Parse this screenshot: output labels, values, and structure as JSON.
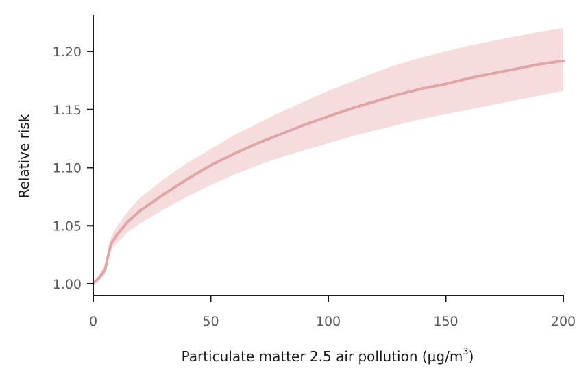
{
  "chart_data": {
    "type": "line",
    "title": "",
    "xlabel": "Particulate matter 2.5 air pollution (µg/",
    "xlabel_unit": "m",
    "xlabel_unit_exponent": "3",
    "xlabel_close": ")",
    "ylabel": "Relative risk",
    "xlim": [
      0,
      200
    ],
    "ylim": [
      0.99,
      1.23
    ],
    "x_ticks": [
      0,
      50,
      100,
      150,
      200
    ],
    "x_tick_labels": [
      "0",
      "50",
      "100",
      "150",
      "200"
    ],
    "y_ticks": [
      1.0,
      1.05,
      1.1,
      1.15,
      1.2
    ],
    "y_tick_labels": [
      "1.00",
      "1.05",
      "1.10",
      "1.15",
      "1.20"
    ],
    "grid": false,
    "line_color": "#e0a5a6",
    "band_color": "#f5dcdd",
    "series": [
      {
        "x": [
          0,
          2.5,
          5,
          7.5,
          10,
          15,
          20,
          30,
          40,
          50,
          60,
          70,
          80,
          90,
          100,
          110,
          120,
          130,
          140,
          150,
          160,
          170,
          180,
          190,
          200
        ],
        "y": [
          1.0,
          1.005,
          1.012,
          1.034,
          1.042,
          1.054,
          1.063,
          1.077,
          1.09,
          1.102,
          1.112,
          1.121,
          1.129,
          1.137,
          1.144,
          1.151,
          1.157,
          1.163,
          1.168,
          1.172,
          1.177,
          1.181,
          1.185,
          1.189,
          1.192
        ],
        "lower": [
          1.0,
          1.003,
          1.008,
          1.029,
          1.035,
          1.045,
          1.052,
          1.064,
          1.075,
          1.085,
          1.094,
          1.102,
          1.109,
          1.115,
          1.121,
          1.127,
          1.132,
          1.137,
          1.142,
          1.146,
          1.15,
          1.154,
          1.158,
          1.162,
          1.166
        ],
        "upper": [
          1.002,
          1.008,
          1.016,
          1.04,
          1.049,
          1.063,
          1.074,
          1.09,
          1.104,
          1.116,
          1.128,
          1.138,
          1.148,
          1.157,
          1.166,
          1.174,
          1.182,
          1.189,
          1.195,
          1.2,
          1.205,
          1.209,
          1.213,
          1.217,
          1.22
        ]
      }
    ]
  }
}
